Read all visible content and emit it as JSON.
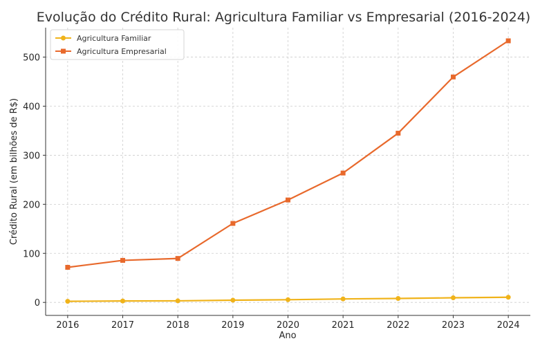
{
  "chart_data": {
    "type": "line",
    "title": "Evolução do Crédito Rural: Agricultura Familiar vs Empresarial (2016-2024)",
    "xlabel": "Ano",
    "ylabel": "Crédito Rural (em bilhões de R$)",
    "x": [
      2016,
      2017,
      2018,
      2019,
      2020,
      2021,
      2022,
      2023,
      2024
    ],
    "x_tick_labels": [
      "2016",
      "2017",
      "2018",
      "2019",
      "2020",
      "2021",
      "2022",
      "2023",
      "2024"
    ],
    "y_ticks": [
      0,
      100,
      200,
      300,
      400,
      500
    ],
    "y_tick_labels": [
      "0",
      "100",
      "200",
      "300",
      "400",
      "500"
    ],
    "xlim": [
      2015.6,
      2024.4
    ],
    "ylim": [
      -26.5,
      560
    ],
    "grid": true,
    "legend_position": "top-left",
    "series": [
      {
        "name": "Agricultura Familiar",
        "color": "#f0b31a",
        "marker": "circle",
        "values": [
          2.2,
          2.9,
          3.2,
          4.5,
          5.5,
          7.1,
          8.0,
          9.4,
          10.5
        ]
      },
      {
        "name": "Agricultura Empresarial",
        "color": "#e8692c",
        "marker": "square",
        "values": [
          71.5,
          85.7,
          89.6,
          161.0,
          208.8,
          263.7,
          344.9,
          459.5,
          533.2
        ]
      }
    ]
  }
}
